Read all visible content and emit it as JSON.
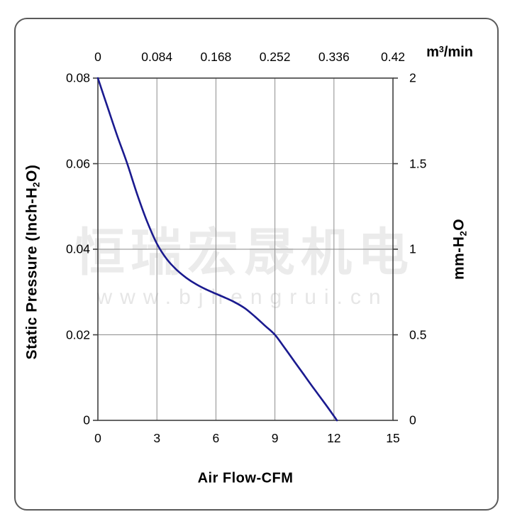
{
  "colors": {
    "curve": "#1a1a8f",
    "grid": "#8c8c8c",
    "frame": "#404040",
    "watermark_cn": "#ebebeb",
    "watermark_url": "#e6e6e6",
    "text": "#000000",
    "border": "#5a5a5a"
  },
  "watermark": {
    "line1": "恒瑞宏晟机电",
    "line2": "www.bjhengrui.cn"
  },
  "chart_data": {
    "type": "line",
    "xlabel": "Air Flow-CFM",
    "x2label": "m³/min",
    "ylabel": "Static Pressure (Inch-H₂O)",
    "y2label": "mm-H₂O",
    "xlabel_parts": {
      "pre": "Air Flow-CFM"
    },
    "x2label_parts": {
      "pre": "m",
      "sup": "3",
      "post": "/min"
    },
    "ylabel_parts": {
      "pre": "Static Pressure (Inch-H",
      "sub": "2",
      "post": "O)"
    },
    "y2label_parts": {
      "pre": "mm-H",
      "sub": "2",
      "post": "O"
    },
    "xlim": [
      0,
      15
    ],
    "x2lim": [
      0,
      0.42
    ],
    "ylim": [
      0,
      0.08
    ],
    "y2lim": [
      0,
      2
    ],
    "grid": true,
    "x_ticks": [
      "0",
      "3",
      "6",
      "9",
      "12",
      "15"
    ],
    "x2_ticks": [
      "0",
      "0.084",
      "0.168",
      "0.252",
      "0.336",
      "0.42"
    ],
    "y_ticks_top_to_bottom": [
      "0.08",
      "0.06",
      "0.04",
      "0.02",
      "0"
    ],
    "y2_ticks_top_to_bottom": [
      "2",
      "1.5",
      "1",
      "0.5",
      "0"
    ],
    "series": [
      {
        "name": "static-pressure-vs-airflow",
        "color": "#1a1a8f",
        "points": [
          [
            0,
            0.08
          ],
          [
            0.5,
            0.0731
          ],
          [
            1,
            0.0663
          ],
          [
            1.5,
            0.0599
          ],
          [
            2,
            0.0528
          ],
          [
            2.5,
            0.0465
          ],
          [
            3,
            0.0413
          ],
          [
            3.5,
            0.0377
          ],
          [
            4,
            0.0352
          ],
          [
            4.5,
            0.0333
          ],
          [
            5,
            0.0318
          ],
          [
            5.5,
            0.0306
          ],
          [
            6,
            0.0296
          ],
          [
            6.5,
            0.0286
          ],
          [
            7,
            0.0275
          ],
          [
            7.5,
            0.0261
          ],
          [
            8,
            0.0242
          ],
          [
            8.5,
            0.0221
          ],
          [
            9,
            0.02
          ],
          [
            9.5,
            0.0169
          ],
          [
            10,
            0.0137
          ],
          [
            10.5,
            0.0105
          ],
          [
            11,
            0.0073
          ],
          [
            11.5,
            0.0042
          ],
          [
            12,
            0.001
          ],
          [
            12.15,
            0
          ]
        ]
      }
    ]
  }
}
